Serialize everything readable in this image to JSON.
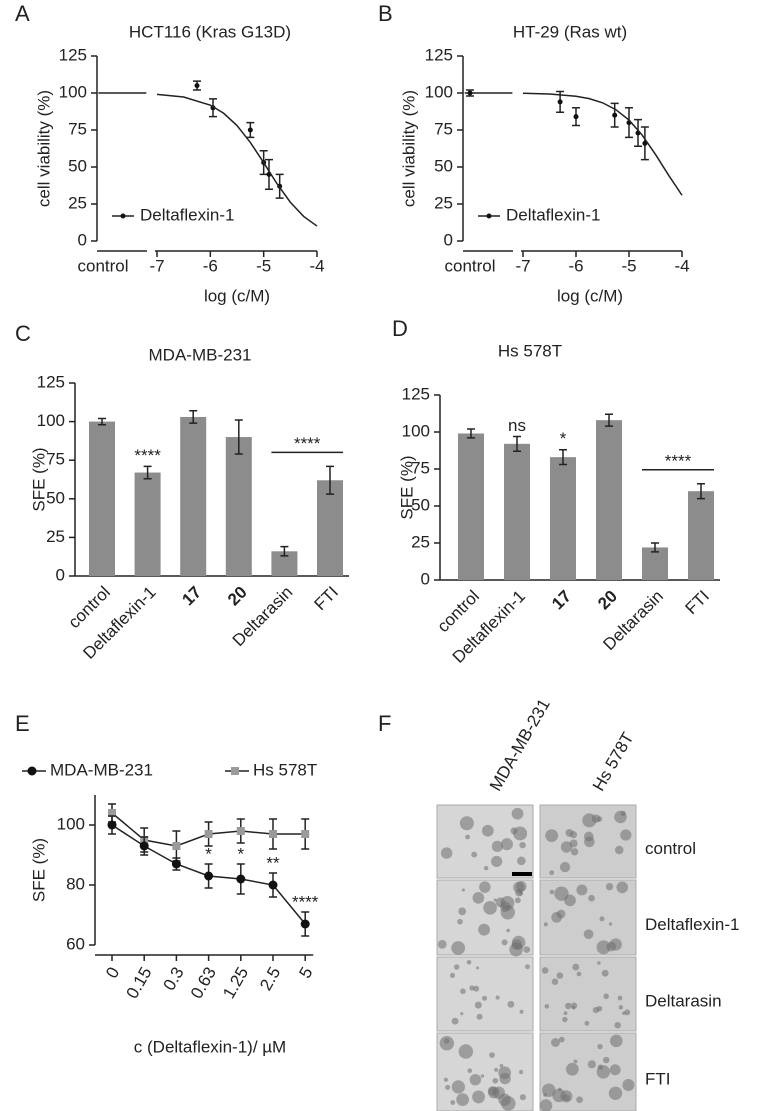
{
  "chart_data": [
    {
      "panel": "A",
      "type": "line",
      "title": "HCT116 (Kras G13D)",
      "y_label": "cell viability (%)",
      "x_label": "log (c/M)",
      "control_label": "control",
      "xlim": [
        -7,
        -4
      ],
      "xticks": [
        -7,
        -6,
        -5,
        -4
      ],
      "ylim": [
        0,
        125
      ],
      "yticks": [
        0,
        25,
        50,
        75,
        100,
        125
      ],
      "series": [
        {
          "name": "Deltaflexin-1",
          "color": "#111111",
          "x": [
            -6.25,
            -5.95,
            -5.25,
            -5,
            -4.9,
            -4.7
          ],
          "values": [
            105,
            90,
            75,
            53,
            45,
            37
          ],
          "errors": [
            3,
            6,
            5,
            8,
            10,
            8
          ]
        },
        {
          "color": "#111111",
          "x": [
            -8.1,
            -7.2
          ],
          "values": [
            100,
            100
          ]
        },
        {
          "color": "#111111",
          "x": [
            -7,
            -6.5,
            -6,
            -5.75,
            -5.5,
            -5.25,
            -5,
            -4.75,
            -4.5,
            -4.25,
            -4
          ],
          "values": [
            99.1,
            97.3,
            91.8,
            86.3,
            78,
            66.6,
            52.9,
            38.7,
            26.2,
            16.6,
            10.1
          ]
        }
      ]
    },
    {
      "panel": "B",
      "type": "line",
      "title": "HT-29 (Ras wt)",
      "y_label": "cell viability (%)",
      "x_label": "log (c/M)",
      "control_label": "control",
      "control_point": {
        "value": 100,
        "error": 2
      },
      "xlim": [
        -7,
        -4
      ],
      "xticks": [
        -7,
        -6,
        -5,
        -4
      ],
      "ylim": [
        0,
        125
      ],
      "yticks": [
        0,
        25,
        50,
        75,
        100,
        125
      ],
      "series": [
        {
          "name": "Deltaflexin-1",
          "color": "#111111",
          "x": [
            -6.3,
            -6,
            -5.27,
            -5,
            -4.83,
            -4.7
          ],
          "values": [
            94,
            84,
            85,
            80,
            73,
            66
          ],
          "errors": [
            7,
            6,
            8,
            10,
            9,
            11
          ]
        },
        {
          "color": "#111111",
          "x": [
            -8.1,
            -7.2
          ],
          "values": [
            100,
            100
          ]
        },
        {
          "color": "#111111",
          "x": [
            -7,
            -6.5,
            -6,
            -5.75,
            -5.5,
            -5.25,
            -5,
            -4.75,
            -4.5,
            -4.25,
            -4
          ],
          "values": [
            99.8,
            99.3,
            97.8,
            96.2,
            93.4,
            88.8,
            81.7,
            71.5,
            58.5,
            44.3,
            30.9
          ]
        }
      ]
    },
    {
      "panel": "C",
      "type": "bar",
      "title": "MDA-MB-231",
      "y_label": "SFE (%)",
      "color": "#8c8c8c",
      "categories": [
        "control",
        "Deltaflexin-1",
        "17",
        "20",
        "Deltarasin",
        "FTI"
      ],
      "bold_categories": [
        2,
        3
      ],
      "values": [
        100,
        67,
        103,
        90,
        16,
        62
      ],
      "errors": [
        2,
        4,
        4,
        11,
        3,
        9
      ],
      "ylim": [
        0,
        125
      ],
      "yticks": [
        0,
        25,
        50,
        75,
        100,
        125
      ],
      "annotations": [
        {
          "text": "****",
          "category": 1
        },
        {
          "text": "****",
          "span": [
            4,
            5
          ]
        }
      ]
    },
    {
      "panel": "D",
      "type": "bar",
      "title": "Hs 578T",
      "y_label": "SFE (%)",
      "color": "#8c8c8c",
      "categories": [
        "control",
        "Deltaflexin-1",
        "17",
        "20",
        "Deltarasin",
        "FTI"
      ],
      "bold_categories": [
        2,
        3
      ],
      "values": [
        99,
        92,
        83,
        108,
        22,
        60
      ],
      "errors": [
        3,
        5,
        5,
        4,
        3,
        5
      ],
      "ylim": [
        0,
        125
      ],
      "yticks": [
        0,
        25,
        50,
        75,
        100,
        125
      ],
      "annotations": [
        {
          "text": "ns",
          "category": 1
        },
        {
          "text": "*",
          "category": 2
        },
        {
          "text": "****",
          "span": [
            4,
            5
          ]
        }
      ]
    },
    {
      "panel": "E",
      "type": "line",
      "y_label": "SFE (%)",
      "x_label": "c (Deltaflexin-1)/ µM",
      "categories": [
        "0",
        "0.15",
        "0.3",
        "0.63",
        "1.25",
        "2.5",
        "5"
      ],
      "ylim": [
        60,
        110
      ],
      "yticks": [
        60,
        80,
        100
      ],
      "series": [
        {
          "name": "MDA-MB-231",
          "color": "#111111",
          "marker": "circle",
          "values": [
            100,
            93,
            87,
            83,
            82,
            80,
            67
          ],
          "errors": [
            3,
            3,
            2,
            4,
            5,
            4,
            4
          ]
        },
        {
          "name": "Hs 578T",
          "color": "#9a9a9a",
          "marker": "square",
          "values": [
            104,
            95,
            93,
            97,
            98,
            97,
            97
          ],
          "errors": [
            3,
            4,
            5,
            4,
            4,
            5,
            5
          ]
        }
      ],
      "annotations": [
        {
          "text": "*",
          "category": 3
        },
        {
          "text": "*",
          "category": 4
        },
        {
          "text": "**",
          "category": 5
        },
        {
          "text": "****",
          "category": 6
        }
      ]
    }
  ],
  "image_grid": {
    "panel": "F",
    "columns": [
      "MDA-MB-231",
      "Hs 578T"
    ],
    "rows": [
      "control",
      "Deltaflexin-1",
      "Deltarasin",
      "FTI"
    ]
  }
}
